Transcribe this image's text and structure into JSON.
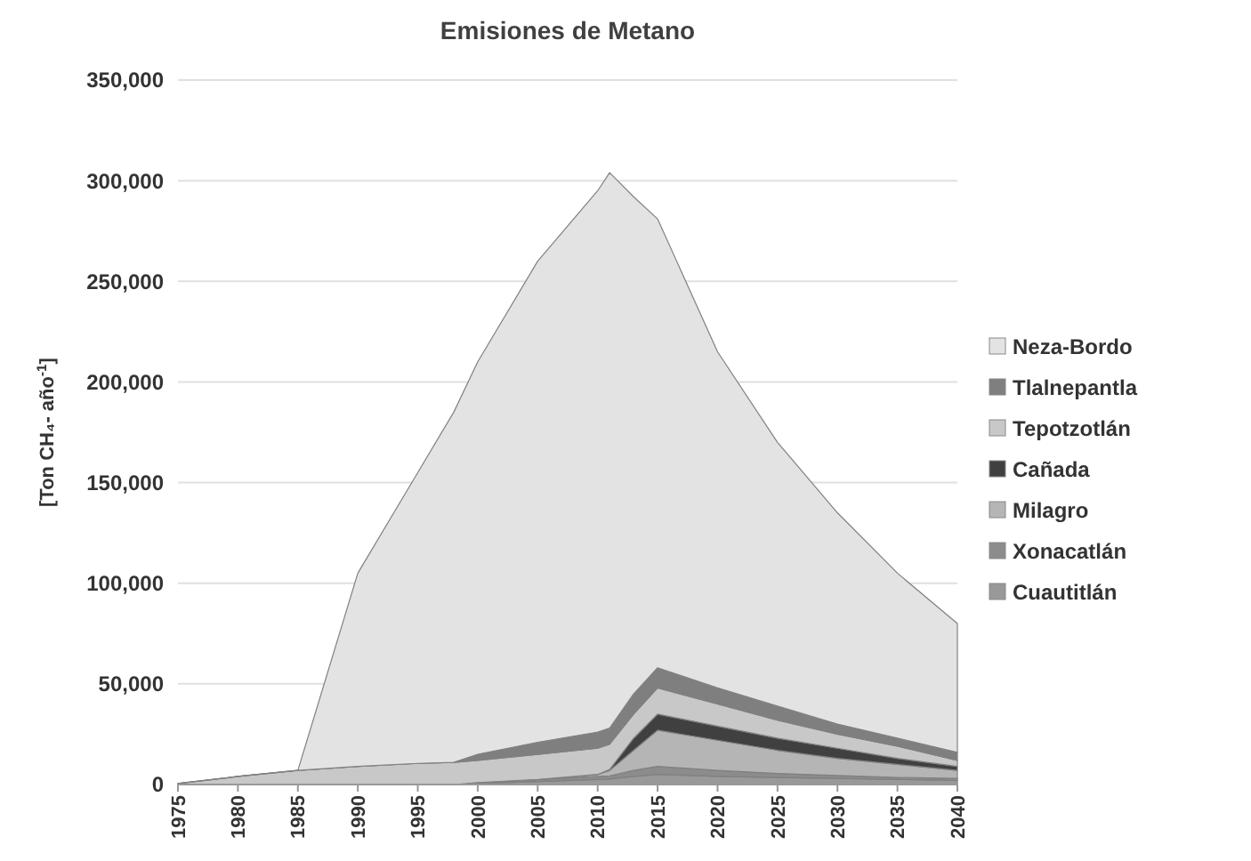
{
  "chart_data": {
    "type": "area",
    "title": "Emisiones de Metano",
    "ylabel": "[Ton CH₄- año$^{-1}$]",
    "stacked": true,
    "grid": "y",
    "legend": "right",
    "x": [
      1975,
      1980,
      1985,
      1990,
      1995,
      1998,
      2000,
      2005,
      2010,
      2011,
      2013,
      2015,
      2020,
      2025,
      2030,
      2035,
      2040
    ],
    "xlim": [
      1975,
      2040
    ],
    "xticks": [
      1975,
      1980,
      1985,
      1990,
      1995,
      2000,
      2005,
      2010,
      2015,
      2020,
      2025,
      2030,
      2035,
      2040
    ],
    "ylim": [
      0,
      350000
    ],
    "yticks": [
      {
        "value": 0,
        "label": "0"
      },
      {
        "value": 50000,
        "label": "50,000"
      },
      {
        "value": 100000,
        "label": "100,000"
      },
      {
        "value": 150000,
        "label": "150,000"
      },
      {
        "value": 200000,
        "label": "200,000"
      },
      {
        "value": 250000,
        "label": "250,000"
      },
      {
        "value": 300000,
        "label": "300,000"
      },
      {
        "value": 350000,
        "label": "350,000"
      }
    ],
    "series": [
      {
        "name": "Cuautitlán",
        "color": "#999999",
        "values": [
          0,
          0,
          0,
          0,
          0,
          0,
          500,
          1500,
          2500,
          2700,
          4000,
          5000,
          4000,
          3500,
          3000,
          2500,
          2000
        ]
      },
      {
        "name": "Xonacatlán",
        "color": "#8c8c8c",
        "values": [
          0,
          0,
          0,
          0,
          0,
          0,
          500,
          1000,
          1500,
          1600,
          3000,
          4000,
          3000,
          2000,
          1500,
          1000,
          1000
        ]
      },
      {
        "name": "Milagro",
        "color": "#b5b5b5",
        "values": [
          0,
          0,
          0,
          0,
          0,
          0,
          0,
          0,
          1000,
          2700,
          10000,
          18000,
          15000,
          11500,
          8500,
          6500,
          4000
        ]
      },
      {
        "name": "Cañada",
        "color": "#404040",
        "values": [
          0,
          0,
          0,
          0,
          0,
          0,
          0,
          0,
          0,
          500,
          6000,
          8000,
          7000,
          6000,
          5000,
          3000,
          2000
        ]
      },
      {
        "name": "Tepotzotlán",
        "color": "#c8c8c8",
        "values": [
          500,
          4000,
          7000,
          9000,
          10500,
          11000,
          11000,
          12500,
          13000,
          12500,
          12000,
          13000,
          11000,
          9000,
          7000,
          6000,
          3000
        ]
      },
      {
        "name": "Tlalnepantla",
        "color": "#7f7f7f",
        "values": [
          0,
          0,
          0,
          0,
          0,
          0,
          3000,
          6000,
          8000,
          8000,
          10000,
          10000,
          8000,
          7000,
          5000,
          4000,
          4000
        ]
      },
      {
        "name": "Neza-Bordo",
        "color": "#e3e3e3",
        "values": [
          0,
          0,
          0,
          96000,
          144500,
          174000,
          195000,
          239000,
          269000,
          276000,
          247000,
          223000,
          167000,
          131000,
          105000,
          82000,
          64000
        ]
      }
    ]
  }
}
